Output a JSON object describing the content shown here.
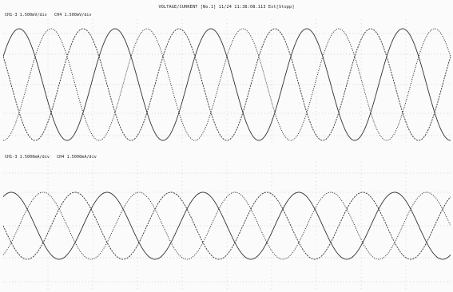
{
  "window": {
    "title": "VOLTAGE/CURRENT [No.1] 11/24 11:38:08.113 Ext[Stopp]"
  },
  "panels": [
    {
      "id": "voltage",
      "labels": [
        "CH1-3  1.500mV/div",
        "CH4  1.500mV/div"
      ]
    },
    {
      "id": "current",
      "labels": [
        "CH1-3  1.5000mA/div",
        "CH4  1.5000mA/div"
      ]
    }
  ],
  "style": {
    "trace_color": "#1c1c1c",
    "grid_color": "#9a9a9a",
    "background": "#fbfbfb"
  }
}
